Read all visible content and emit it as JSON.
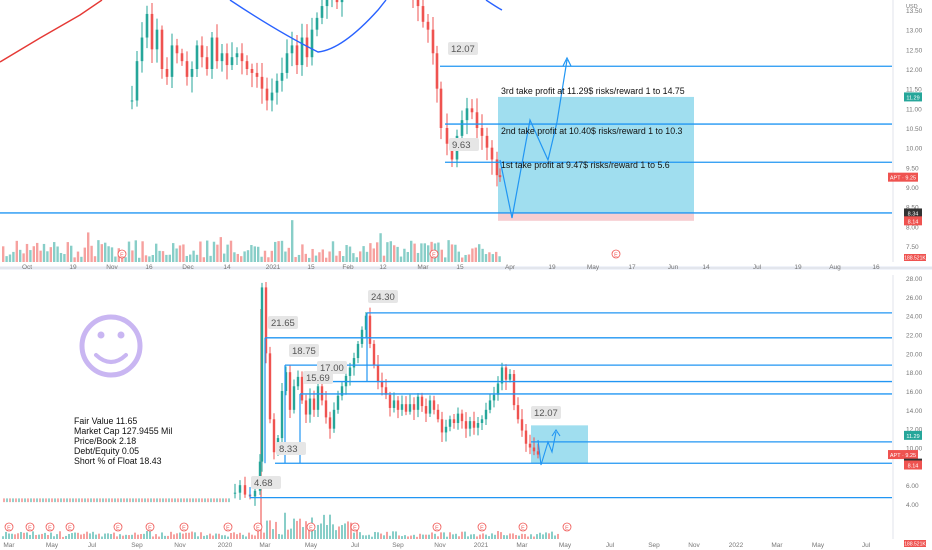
{
  "colors": {
    "up": "#26a69a",
    "down": "#ef5350",
    "level": "#2196f3",
    "target_fill": "#8fd8ec",
    "stop_fill": "#f6c9cc",
    "ma_blue": "#2962ff",
    "ma_red": "#e53935",
    "smiley": "#c9b6f2",
    "axis_text": "#777777",
    "label_bg": "#e6e6e6",
    "price_tag_red": "#ef5350",
    "price_tag_teal": "#26a69a"
  },
  "chart_data": [
    {
      "type": "candlestick",
      "id": "top",
      "xlabels": [
        "Oct",
        "19",
        "Nov",
        "16",
        "Dec",
        "14",
        "2021",
        "15",
        "Feb",
        "12",
        "Mar",
        "15",
        "Apr",
        "19",
        "May",
        "17",
        "Jun",
        "14",
        "Jul",
        "19",
        "Aug",
        "16"
      ],
      "yticks": [
        "13.50",
        "13.00",
        "12.50",
        "12.00",
        "11.50",
        "11.00",
        "10.50",
        "10.00",
        "9.50",
        "9.00",
        "8.50",
        "8.00",
        "7.50"
      ],
      "ylim": [
        7.4,
        13.9
      ],
      "axis_unit": "USD",
      "price_tags": [
        {
          "text": "11.29",
          "price": 11.29,
          "color": "teal"
        },
        {
          "text": "APT · 9.25",
          "price": 9.25,
          "color": "red"
        },
        {
          "text": "8.34",
          "price": 8.34,
          "color": "dark"
        },
        {
          "text": "8.14",
          "price": 8.14,
          "color": "red"
        }
      ],
      "volume_tag": "188.521K",
      "levels": [
        12.07,
        10.6,
        9.63,
        8.34
      ],
      "target_zone": [
        8.34,
        11.29
      ],
      "stop_zone": [
        8.14,
        8.34
      ],
      "annotations": [
        {
          "text": "12.07",
          "kind": "box",
          "price": 12.07
        },
        {
          "text": "9.63",
          "kind": "box",
          "price": 9.63
        },
        {
          "text": "3rd take profit at 11.29$ risks/reward 1 to 14.75",
          "kind": "plain",
          "price": 11.29
        },
        {
          "text": "2nd take profit at 10.40$ risks/reward 1 to 10.3",
          "kind": "plain",
          "price": 10.4
        },
        {
          "text": "1st take profit at 9.47$ risks/reward 1 to 5.6",
          "kind": "plain",
          "price": 9.47
        }
      ],
      "earnings_markers": [
        "E",
        "E",
        "E",
        "E",
        "E",
        "E",
        "E"
      ]
    },
    {
      "type": "candlestick",
      "id": "bottom",
      "xlabels": [
        "Mar",
        "May",
        "Jul",
        "Sep",
        "Nov",
        "2020",
        "Mar",
        "May",
        "Jul",
        "Sep",
        "Nov",
        "2021",
        "Mar",
        "May",
        "Jul",
        "Sep",
        "Nov",
        "2022",
        "Mar",
        "May",
        "Jul"
      ],
      "yticks": [
        "28.00",
        "26.00",
        "24.00",
        "22.00",
        "20.00",
        "18.00",
        "16.00",
        "14.00",
        "12.00",
        "10.00",
        "8.00",
        "6.00",
        "4.00"
      ],
      "ylim": [
        3.2,
        28.3
      ],
      "price_tags": [
        {
          "text": "11.29",
          "price": 11.29,
          "color": "teal"
        },
        {
          "text": "APT · 9.25",
          "price": 9.25,
          "color": "red"
        },
        {
          "text": "8.34",
          "price": 8.34,
          "color": "dark"
        },
        {
          "text": "8.14",
          "price": 8.14,
          "color": "red"
        }
      ],
      "volume_tag": "188.521K",
      "levels": [
        24.3,
        21.65,
        18.75,
        17.0,
        15.69,
        10.6,
        8.33,
        4.68
      ],
      "target_zone": [
        8.34,
        11.29
      ],
      "annotations": [
        {
          "text": "24.30",
          "kind": "box",
          "price": 24.3
        },
        {
          "text": "21.65",
          "kind": "box",
          "price": 21.65
        },
        {
          "text": "18.75",
          "kind": "box",
          "price": 18.75
        },
        {
          "text": "17.00",
          "kind": "box",
          "price": 17.0
        },
        {
          "text": "15.69",
          "kind": "box",
          "price": 15.69
        },
        {
          "text": "8.33",
          "kind": "box",
          "price": 8.33
        },
        {
          "text": "4.68",
          "kind": "box",
          "price": 4.68
        },
        {
          "text": "12.07",
          "kind": "box",
          "price": 12.07
        }
      ],
      "fundamentals": [
        "Fair Value 11.65",
        "Market Cap 127.9455 Mil",
        "Price/Book 2.18",
        "Debt/Equity 0.05",
        "Short % of Float 18.43"
      ],
      "earnings_markers": [
        "E",
        "E",
        "E",
        "E",
        "E",
        "E",
        "E",
        "E",
        "E",
        "E",
        "E",
        "E",
        "E",
        "E",
        "E",
        "E"
      ]
    }
  ]
}
